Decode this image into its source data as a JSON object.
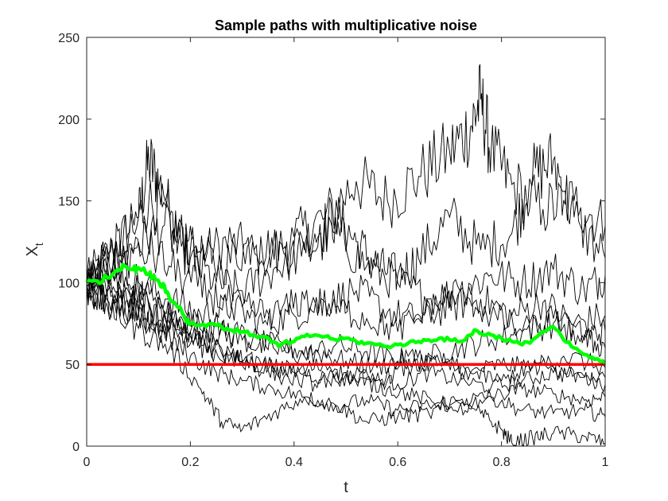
{
  "chart_data": {
    "type": "line",
    "title": "Sample paths with multiplicative noise",
    "xlabel": "t",
    "ylabel_main": "X",
    "ylabel_sub": "t",
    "xlim": [
      0,
      1
    ],
    "ylim": [
      0,
      250
    ],
    "xticks": [
      0,
      0.2,
      0.4,
      0.6,
      0.8,
      1
    ],
    "xtick_labels": [
      "0",
      "0.2",
      "0.4",
      "0.6",
      "0.8",
      "1"
    ],
    "yticks": [
      0,
      50,
      100,
      150,
      200,
      250
    ],
    "ytick_labels": [
      "0",
      "50",
      "100",
      "150",
      "200",
      "250"
    ],
    "grid": false,
    "colors": {
      "paths": "#000000",
      "mean": "#00ff00",
      "reference": "#ff0000"
    },
    "reference_line": {
      "y": 50
    },
    "mean_path": {
      "x": [
        0,
        0.02,
        0.04,
        0.06,
        0.07,
        0.09,
        0.1,
        0.12,
        0.13,
        0.14,
        0.15,
        0.16,
        0.18,
        0.19,
        0.2,
        0.22,
        0.24,
        0.26,
        0.28,
        0.3,
        0.32,
        0.34,
        0.36,
        0.37,
        0.38,
        0.4,
        0.42,
        0.44,
        0.46,
        0.48,
        0.5,
        0.52,
        0.54,
        0.56,
        0.58,
        0.6,
        0.62,
        0.64,
        0.66,
        0.68,
        0.7,
        0.72,
        0.74,
        0.75,
        0.76,
        0.78,
        0.8,
        0.82,
        0.84,
        0.86,
        0.88,
        0.9,
        0.92,
        0.94,
        0.96,
        0.98,
        1.0
      ],
      "y": [
        100,
        101,
        103,
        108,
        111,
        108,
        109,
        105,
        104,
        100,
        98,
        90,
        85,
        78,
        75,
        74,
        75,
        73,
        71,
        70,
        68,
        67,
        64,
        61,
        63,
        64,
        67,
        68,
        67,
        65,
        66,
        64,
        63,
        62,
        61,
        62,
        63,
        64,
        65,
        66,
        65,
        64,
        68,
        71,
        69,
        68,
        66,
        64,
        62,
        65,
        70,
        73,
        65,
        60,
        56,
        53,
        51
      ]
    },
    "series": [
      {
        "x": [
          0,
          0.05,
          0.1,
          0.12,
          0.14,
          0.18,
          0.22,
          0.28,
          0.34,
          0.4,
          0.46,
          0.52,
          0.58,
          0.64,
          0.7,
          0.74,
          0.76,
          0.78,
          0.82,
          0.88,
          0.94,
          1.0
        ],
        "y": [
          102,
          120,
          140,
          175,
          160,
          130,
          118,
          125,
          115,
          128,
          140,
          162,
          150,
          165,
          180,
          195,
          212,
          180,
          160,
          145,
          150,
          135
        ]
      },
      {
        "x": [
          0,
          0.04,
          0.08,
          0.12,
          0.16,
          0.2,
          0.26,
          0.32,
          0.38,
          0.44,
          0.48,
          0.52,
          0.56,
          0.6,
          0.64,
          0.7,
          0.76,
          0.82,
          0.86,
          0.9,
          0.94,
          1.0
        ],
        "y": [
          100,
          115,
          130,
          150,
          140,
          120,
          110,
          125,
          118,
          130,
          140,
          125,
          110,
          105,
          115,
          140,
          120,
          130,
          165,
          175,
          140,
          115
        ]
      },
      {
        "x": [
          0,
          0.05,
          0.1,
          0.15,
          0.2,
          0.25,
          0.3,
          0.36,
          0.42,
          0.48,
          0.54,
          0.6,
          0.66,
          0.72,
          0.78,
          0.84,
          0.9,
          0.96,
          1.0
        ],
        "y": [
          98,
          110,
          125,
          135,
          115,
          100,
          95,
          108,
          120,
          130,
          110,
          100,
          90,
          95,
          105,
          100,
          108,
          95,
          105
        ]
      },
      {
        "x": [
          0,
          0.04,
          0.1,
          0.16,
          0.22,
          0.28,
          0.34,
          0.4,
          0.46,
          0.52,
          0.58,
          0.64,
          0.7,
          0.76,
          0.82,
          0.88,
          0.94,
          1.0
        ],
        "y": [
          104,
          118,
          100,
          90,
          80,
          85,
          75,
          80,
          88,
          95,
          82,
          78,
          85,
          90,
          80,
          88,
          75,
          80
        ]
      },
      {
        "x": [
          0,
          0.06,
          0.12,
          0.18,
          0.24,
          0.3,
          0.36,
          0.42,
          0.48,
          0.54,
          0.6,
          0.66,
          0.72,
          0.78,
          0.84,
          0.9,
          0.96,
          1.0
        ],
        "y": [
          100,
          92,
          85,
          78,
          70,
          65,
          60,
          55,
          62,
          58,
          52,
          55,
          60,
          65,
          70,
          75,
          68,
          70
        ]
      },
      {
        "x": [
          0,
          0.05,
          0.1,
          0.15,
          0.2,
          0.26,
          0.32,
          0.38,
          0.44,
          0.5,
          0.56,
          0.62,
          0.68,
          0.74,
          0.8,
          0.86,
          0.92,
          1.0
        ],
        "y": [
          96,
          88,
          82,
          75,
          70,
          72,
          65,
          60,
          58,
          52,
          48,
          55,
          50,
          45,
          50,
          48,
          55,
          48
        ]
      },
      {
        "x": [
          0,
          0.06,
          0.12,
          0.18,
          0.24,
          0.3,
          0.36,
          0.42,
          0.48,
          0.54,
          0.6,
          0.66,
          0.72,
          0.78,
          0.84,
          0.9,
          0.96,
          1.0
        ],
        "y": [
          101,
          95,
          88,
          70,
          58,
          52,
          48,
          45,
          40,
          42,
          38,
          45,
          40,
          36,
          40,
          45,
          42,
          38
        ]
      },
      {
        "x": [
          0,
          0.05,
          0.1,
          0.15,
          0.2,
          0.25,
          0.3,
          0.36,
          0.42,
          0.48,
          0.54,
          0.6,
          0.66,
          0.72,
          0.78,
          0.84,
          0.9,
          0.96,
          1.0
        ],
        "y": [
          99,
          90,
          80,
          68,
          55,
          45,
          40,
          35,
          30,
          25,
          28,
          22,
          25,
          28,
          30,
          35,
          32,
          28,
          30
        ]
      },
      {
        "x": [
          0,
          0.04,
          0.1,
          0.16,
          0.22,
          0.26,
          0.3,
          0.36,
          0.42,
          0.48,
          0.54,
          0.6,
          0.66,
          0.72,
          0.78,
          0.84,
          0.9,
          0.96,
          1.0
        ],
        "y": [
          97,
          85,
          72,
          60,
          35,
          15,
          10,
          20,
          30,
          25,
          15,
          18,
          20,
          25,
          30,
          22,
          20,
          22,
          18
        ]
      },
      {
        "x": [
          0,
          0.05,
          0.1,
          0.16,
          0.22,
          0.28,
          0.34,
          0.4,
          0.46,
          0.52,
          0.58,
          0.64,
          0.7,
          0.76,
          0.8,
          0.82,
          0.86,
          0.9,
          0.96,
          1.0
        ],
        "y": [
          100,
          92,
          84,
          75,
          62,
          55,
          50,
          45,
          50,
          40,
          35,
          30,
          25,
          20,
          10,
          2,
          5,
          8,
          6,
          2
        ]
      },
      {
        "x": [
          0,
          0.06,
          0.12,
          0.18,
          0.24,
          0.3,
          0.36,
          0.42,
          0.48,
          0.54,
          0.6,
          0.66,
          0.72,
          0.78,
          0.84,
          0.9,
          0.96,
          1.0
        ],
        "y": [
          103,
          112,
          120,
          105,
          92,
          85,
          80,
          90,
          85,
          78,
          70,
          85,
          95,
          80,
          70,
          78,
          65,
          60
        ]
      },
      {
        "x": [
          0,
          0.05,
          0.1,
          0.15,
          0.2,
          0.26,
          0.32,
          0.38,
          0.44,
          0.5,
          0.56,
          0.62,
          0.68,
          0.74,
          0.8,
          0.86,
          0.92,
          1.0
        ],
        "y": [
          98,
          105,
          95,
          82,
          70,
          60,
          50,
          42,
          38,
          45,
          40,
          48,
          52,
          45,
          40,
          50,
          45,
          42
        ]
      }
    ]
  }
}
